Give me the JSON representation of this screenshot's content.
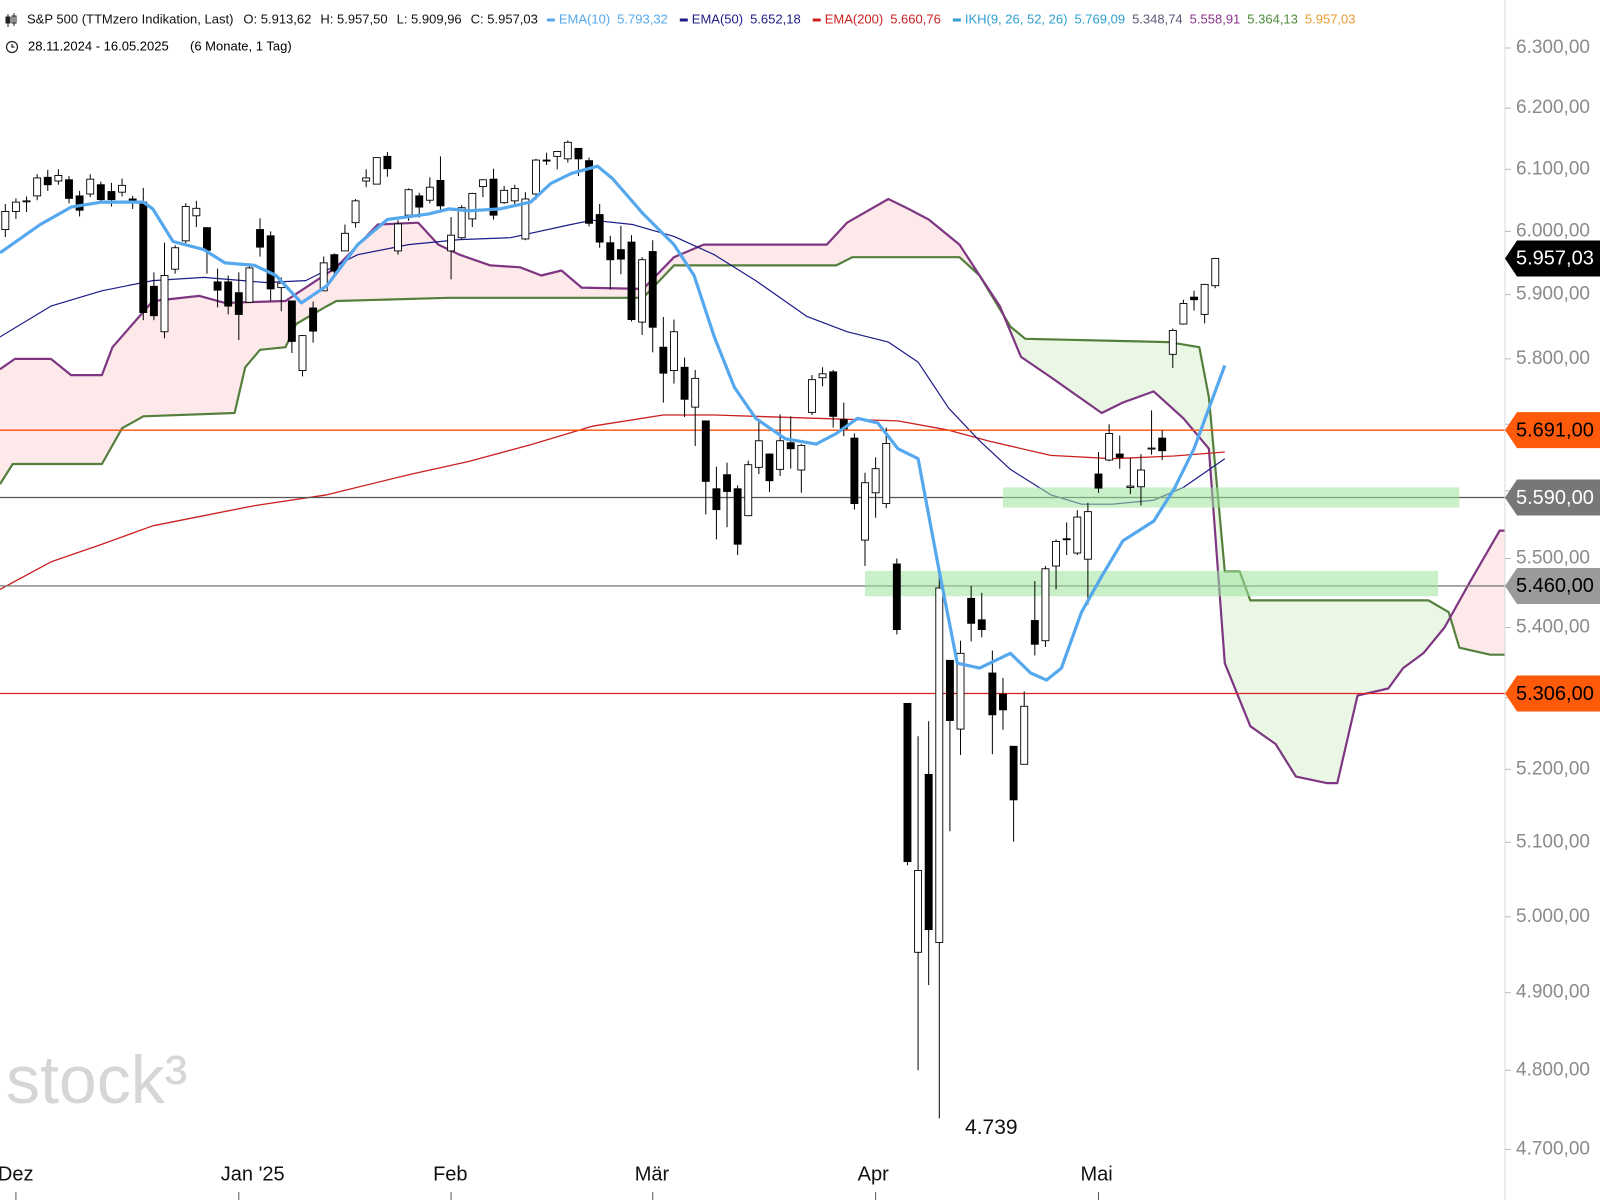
{
  "chart_data": {
    "type": "candlestick",
    "title": "S&P 500 (TTMzero Indikation, Last)",
    "ohlc_header": [
      "O: 5.913,62",
      "H: 5.957,50",
      "L: 5.909,96",
      "C: 5.957,03"
    ],
    "date_range": "28.11.2024 - 16.05.2025",
    "period": "(6 Monate, 1 Tag)",
    "watermark": "stock³",
    "log_scale": true,
    "xlim": [
      -0.5,
      141.3
    ],
    "ylim": [
      4683,
      6381
    ],
    "xticks": [
      {
        "value": 1,
        "label": "Dez"
      },
      {
        "value": 22,
        "label": "Jan '25"
      },
      {
        "value": 42,
        "label": "Feb"
      },
      {
        "value": 61,
        "label": "Mär"
      },
      {
        "value": 82,
        "label": "Apr"
      },
      {
        "value": 103,
        "label": "Mai"
      }
    ],
    "yticks": [
      {
        "value": 4700,
        "label": "4.700,00"
      },
      {
        "value": 4800,
        "label": "4.800,00"
      },
      {
        "value": 4900,
        "label": "4.900,00"
      },
      {
        "value": 5000,
        "label": "5.000,00"
      },
      {
        "value": 5100,
        "label": "5.100,00"
      },
      {
        "value": 5200,
        "label": "5.200,00"
      },
      {
        "value": 5300,
        "label": "5.300,00"
      },
      {
        "value": 5400,
        "label": "5.400,00"
      },
      {
        "value": 5500,
        "label": "5.500,00"
      },
      {
        "value": 5600,
        "label": "5.600,00"
      },
      {
        "value": 5700,
        "label": "5.700,00"
      },
      {
        "value": 5800,
        "label": "5.800,00"
      },
      {
        "value": 5900,
        "label": "5.900,00"
      },
      {
        "value": 6000,
        "label": "6.000,00"
      },
      {
        "value": 6100,
        "label": "6.100,00"
      },
      {
        "value": 6200,
        "label": "6.200,00"
      },
      {
        "value": 6300,
        "label": "6.300,00"
      }
    ],
    "candles": {
      "up_color": "#ffffff",
      "down_color": "#000000",
      "open": [
        6003,
        6032,
        6048,
        6057,
        6087,
        6081,
        6083,
        6057,
        6060,
        6075,
        6064,
        6063,
        6052,
        6047,
        5913,
        5842,
        5940,
        5985,
        6025,
        6006,
        5920,
        5920,
        5903,
        5888,
        6003,
        5993,
        5911,
        5890,
        5782,
        5879,
        5906,
        5963,
        5969,
        6014,
        6081,
        6076,
        6121,
        5969,
        6026,
        6057,
        6050,
        6082,
        5969,
        5990,
        6020,
        6072,
        6084,
        6046,
        6049,
        5988,
        6060,
        6115,
        6121,
        6117,
        6134,
        6114,
        6027,
        5982,
        5971,
        5983,
        5857,
        5968,
        5818,
        5782,
        5787,
        5726,
        5705,
        5603,
        5624,
        5603,
        5563,
        5635,
        5655,
        5632,
        5672,
        5631,
        5718,
        5771,
        5780,
        5707,
        5679,
        5527,
        5597,
        5581,
        5492,
        5292,
        4953,
        5193,
        4966,
        5353,
        5256,
        5442,
        5411,
        5335,
        5305,
        5232,
        5207,
        5410,
        5381,
        5489,
        5529,
        5508,
        5499,
        5625,
        5646,
        5655,
        5605,
        5606,
        5663,
        5679,
        5807,
        5854,
        5896,
        5869,
        5914
      ],
      "high": [
        6044,
        6053,
        6056,
        6092,
        6099,
        6100,
        6089,
        6065,
        6092,
        6080,
        6078,
        6085,
        6057,
        6070,
        5935,
        5982,
        5978,
        6045,
        6049,
        6007,
        5941,
        5930,
        5935,
        5949,
        6021,
        6000,
        5927,
        5890,
        5837,
        5889,
        5960,
        5965,
        6011,
        6052,
        6100,
        6119,
        6128,
        6018,
        6069,
        6062,
        6087,
        6121,
        6023,
        6042,
        6062,
        6084,
        6101,
        6073,
        6075,
        6063,
        6117,
        6127,
        6130,
        6147,
        6134,
        6119,
        6044,
        5993,
        6009,
        5994,
        5959,
        5986,
        5865,
        5861,
        5802,
        5783,
        5705,
        5636,
        5642,
        5608,
        5645,
        5704,
        5656,
        5715,
        5712,
        5670,
        5775,
        5787,
        5783,
        5733,
        5686,
        5627,
        5650,
        5695,
        5500,
        5292,
        5246,
        5267,
        5481,
        5353,
        5381,
        5460,
        5450,
        5367,
        5328,
        5232,
        5309,
        5467,
        5489,
        5528,
        5553,
        5571,
        5582,
        5658,
        5700,
        5683,
        5649,
        5655,
        5721,
        5691,
        5847,
        5892,
        5906,
        5917,
        5958
      ],
      "low": [
        5991,
        6020,
        6031,
        6050,
        6065,
        6075,
        6045,
        6024,
        6055,
        6045,
        6040,
        6056,
        6036,
        5860,
        5860,
        5832,
        5933,
        5981,
        6007,
        5933,
        5880,
        5869,
        5829,
        5888,
        5960,
        5890,
        5874,
        5809,
        5773,
        5825,
        5906,
        5931,
        5969,
        6006,
        6071,
        6076,
        6088,
        5963,
        6017,
        6022,
        6045,
        6030,
        5924,
        5987,
        6007,
        6055,
        6019,
        6044,
        6040,
        5986,
        6051,
        6107,
        6100,
        6111,
        6089,
        6008,
        5974,
        5908,
        5932,
        5858,
        5837,
        5810,
        5733,
        5762,
        5711,
        5667,
        5565,
        5528,
        5546,
        5505,
        5563,
        5625,
        5598,
        5622,
        5633,
        5597,
        5714,
        5758,
        5695,
        5682,
        5572,
        5489,
        5560,
        5574,
        5390,
        5069,
        4800,
        4910,
        4739,
        5115,
        5220,
        5380,
        5386,
        5221,
        5255,
        5101,
        5207,
        5360,
        5372,
        5455,
        5505,
        5505,
        5433,
        5597,
        5644,
        5633,
        5595,
        5578,
        5654,
        5646,
        5786,
        5853,
        5875,
        5855,
        5910
      ],
      "close": [
        6032,
        6047,
        6049,
        6086,
        6075,
        6090,
        6053,
        6034,
        6084,
        6051,
        6051,
        6074,
        6050,
        5872,
        5867,
        5930,
        5974,
        6040,
        6037,
        5970,
        5907,
        5882,
        5869,
        5942,
        5975,
        5909,
        5918,
        5827,
        5836,
        5843,
        5950,
        5937,
        5997,
        6049,
        6086,
        6119,
        6101,
        6012,
        6067,
        6039,
        6071,
        6041,
        5994,
        6038,
        6061,
        6083,
        6026,
        6066,
        6069,
        6052,
        6115,
        6115,
        6129,
        6144,
        6117,
        6013,
        5983,
        5955,
        5956,
        5861,
        5955,
        5849,
        5778,
        5842,
        5738,
        5770,
        5614,
        5572,
        5599,
        5521,
        5639,
        5675,
        5615,
        5675,
        5663,
        5668,
        5768,
        5777,
        5712,
        5693,
        5581,
        5612,
        5633,
        5671,
        5397,
        5074,
        5062,
        4983,
        5457,
        5268,
        5363,
        5406,
        5397,
        5276,
        5283,
        5158,
        5288,
        5376,
        5485,
        5525,
        5529,
        5561,
        5569,
        5604,
        5686,
        5650,
        5607,
        5631,
        5664,
        5660,
        5844,
        5886,
        5892,
        5916,
        5957
      ]
    },
    "series": [
      {
        "name": "EMA(10)",
        "color": "#55a8ee",
        "legend_values": [
          "5.793,32"
        ],
        "x": [
          -0.5,
          3.3,
          6.2,
          9.1,
          13.0,
          13.9,
          15.8,
          18.7,
          20.7,
          23.5,
          25.5,
          27.9,
          30.3,
          33.2,
          36.0,
          39.9,
          41.8,
          43.7,
          46.6,
          49.5,
          51.4,
          53.3,
          55.8,
          57.2,
          60.1,
          63.0,
          64.9,
          66.8,
          68.7,
          70.7,
          73.5,
          76.4,
          78.3,
          80.3,
          82.2,
          84.1,
          86.0,
          88.0,
          89.7,
          91.8,
          94.7,
          96.6,
          98.1,
          99.5,
          101.4,
          103.3,
          105.3,
          108.2,
          110.1,
          112.0,
          114.9
        ],
        "values": [
          5966,
          6011,
          6039,
          6047,
          6047,
          6036,
          5984,
          5971,
          5950,
          5946,
          5930,
          5887,
          5914,
          5979,
          6019,
          6028,
          6036,
          6033,
          6036,
          6047,
          6077,
          6093,
          6105,
          6085,
          6028,
          5979,
          5930,
          5834,
          5756,
          5709,
          5678,
          5670,
          5686,
          5709,
          5702,
          5663,
          5648,
          5481,
          5349,
          5342,
          5363,
          5335,
          5325,
          5342,
          5422,
          5474,
          5526,
          5555,
          5602,
          5663,
          5790
        ]
      },
      {
        "name": "EMA(50)",
        "color": "#1c1c86",
        "legend_values": [
          "5.652,18"
        ],
        "x": [
          -0.5,
          4.3,
          9.1,
          13.9,
          18.7,
          24.5,
          28.3,
          33.2,
          38.0,
          42.8,
          47.6,
          53.3,
          55.3,
          59.1,
          63.0,
          66.8,
          70.7,
          75.5,
          79.3,
          83.2,
          86.0,
          88.9,
          91.8,
          94.7,
          98.5,
          101.4,
          104.3,
          108.2,
          111.0,
          114.9
        ],
        "values": [
          5834,
          5882,
          5906,
          5922,
          5927,
          5919,
          5922,
          5963,
          5979,
          5987,
          5990,
          6011,
          6018,
          6011,
          5992,
          5963,
          5922,
          5866,
          5842,
          5826,
          5795,
          5724,
          5675,
          5632,
          5594,
          5580,
          5580,
          5586,
          5605,
          5648
        ]
      },
      {
        "name": "EMA(200)",
        "color": "#cc2020",
        "legend_values": [
          "5.660,76"
        ],
        "x": [
          -0.5,
          4.3,
          9.1,
          13.9,
          18.7,
          23.5,
          30.3,
          38.0,
          43.7,
          49.5,
          55.3,
          62.0,
          66.8,
          76.4,
          84.1,
          88.9,
          92.8,
          98.5,
          104.3,
          110.1,
          114.9
        ],
        "values": [
          5455,
          5495,
          5521,
          5548,
          5563,
          5578,
          5594,
          5624,
          5644,
          5669,
          5697,
          5714,
          5714,
          5709,
          5705,
          5691,
          5674,
          5653,
          5648,
          5652,
          5658
        ]
      }
    ],
    "ichimoku": {
      "name": "IKH(9, 26, 52, 26)",
      "color": "#2f9fd0",
      "legend_values": [
        {
          "text": "5.769,09",
          "color": "#2f9fd0"
        },
        {
          "text": "5.348,74",
          "color": "#5a5a7a"
        },
        {
          "text": "5.558,91",
          "color": "#8a358a"
        },
        {
          "text": "5.364,13",
          "color": "#4e8a3a"
        },
        {
          "text": "5.957,03",
          "color": "#e89a30"
        }
      ],
      "bull_fill": "#e9f7e4",
      "bear_fill": "#fde9e9",
      "span_a": {
        "color": "#547f3c",
        "x": [
          -0.5,
          0.7,
          9.1,
          11.0,
          13.0,
          21.6,
          22.6,
          24.0,
          26.4,
          27.4,
          30.3,
          31.2,
          41.8,
          60.1,
          63.0,
          78.3,
          79.8,
          89.9,
          91.8,
          94.7,
          96.1,
          109.6,
          112.5,
          113.4,
          114.9,
          116.3,
          117.3,
          134.1,
          136.0,
          137.0,
          139.9,
          141.3
        ],
        "values": [
          5610,
          5640,
          5640,
          5694,
          5712,
          5717,
          5787,
          5814,
          5818,
          5854,
          5882,
          5890,
          5895,
          5895,
          5946,
          5946,
          5959,
          5959,
          5930,
          5850,
          5831,
          5826,
          5818,
          5741,
          5481,
          5481,
          5439,
          5439,
          5422,
          5371,
          5361,
          5361
        ]
      },
      "span_b": {
        "color": "#7e3682",
        "x": [
          -0.5,
          0.9,
          4.3,
          6.2,
          9.1,
          10.1,
          13.9,
          18.3,
          20.7,
          26.4,
          28.3,
          31.2,
          35.1,
          38.9,
          40.8,
          42.8,
          45.7,
          48.5,
          50.5,
          52.4,
          54.3,
          60.1,
          63.0,
          65.8,
          77.4,
          79.3,
          83.2,
          85.1,
          87.0,
          89.9,
          91.8,
          93.7,
          95.7,
          98.5,
          100.5,
          103.3,
          105.3,
          108.2,
          111.0,
          113.4,
          114.9,
          117.3,
          119.7,
          121.6,
          124.5,
          125.5,
          127.4,
          130.3,
          131.7,
          133.6,
          135.6,
          138.0,
          140.8,
          141.3
        ],
        "values": [
          5784,
          5800,
          5800,
          5775,
          5775,
          5818,
          5890,
          5898,
          5887,
          5890,
          5911,
          5943,
          6011,
          6014,
          5979,
          5963,
          5946,
          5943,
          5930,
          5938,
          5911,
          5909,
          5959,
          5979,
          5979,
          6014,
          6052,
          6036,
          6019,
          5979,
          5930,
          5882,
          5803,
          5772,
          5749,
          5717,
          5733,
          5750,
          5709,
          5663,
          5349,
          5260,
          5235,
          5190,
          5181,
          5181,
          5303,
          5313,
          5342,
          5363,
          5400,
          5466,
          5541,
          5541
        ]
      }
    },
    "levels": [
      {
        "value": 5691,
        "label": "5.691,00",
        "color": "#ff4d0a",
        "tag_color": "#ff5a0a",
        "text_color": "#000000"
      },
      {
        "value": 5590,
        "label": "5.590,00",
        "color": "#555555",
        "tag_color": "#777777",
        "text_color": "#ffffff"
      },
      {
        "value": 5460,
        "label": "5.460,00",
        "color": "#808080",
        "tag_color": "#9a9a9a",
        "text_color": "#000000"
      },
      {
        "value": 5306,
        "label": "5.306,00",
        "color": "#e02020",
        "tag_color": "#ff5a0a",
        "text_color": "#000000"
      }
    ],
    "zones": [
      {
        "x": [
          94,
          137
        ],
        "y": [
          5575,
          5605
        ],
        "color": "#9de39d"
      },
      {
        "x": [
          81,
          135
        ],
        "y": [
          5445,
          5482
        ],
        "color": "#9de39d"
      }
    ],
    "last_price": {
      "value": 5957.03,
      "label": "5.957,03",
      "tag_color": "#000000",
      "text_color": "#ffffff"
    },
    "annotation": "4.739"
  }
}
